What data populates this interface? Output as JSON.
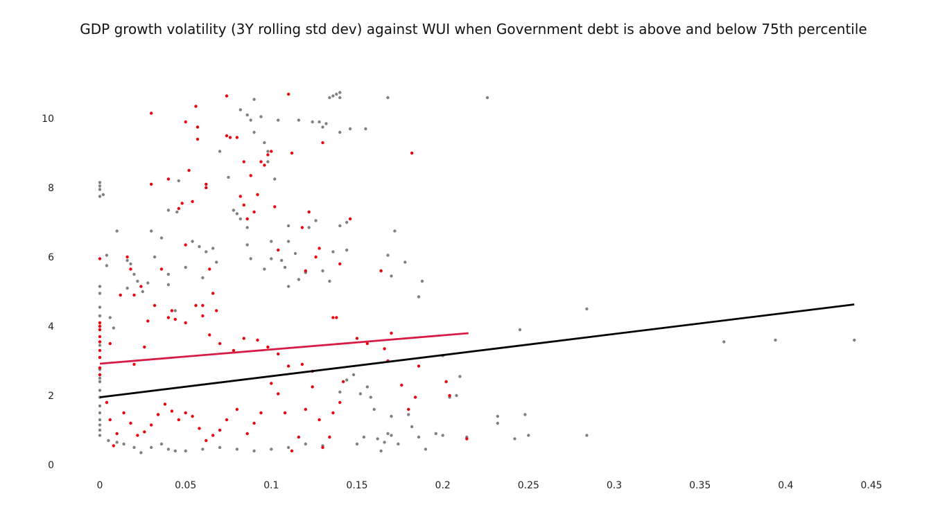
{
  "chart_data": {
    "type": "scatter",
    "title": "GDP growth volatility (3Y rolling std dev) against WUI when Government debt is above and below 75th percentile",
    "xlabel": "",
    "ylabel": "",
    "xlim": [
      0,
      0.45
    ],
    "ylim": [
      0,
      11
    ],
    "x_ticks": [
      0,
      0.05,
      0.1,
      0.15,
      0.2,
      0.25,
      0.3,
      0.35,
      0.4,
      0.45
    ],
    "x_tick_labels": [
      "0",
      "0.05",
      "0.1",
      "0.15",
      "0.2",
      "0.25",
      "0.3",
      "0.35",
      "0.4",
      "0.45"
    ],
    "y_ticks": [
      0,
      2,
      4,
      6,
      8,
      10
    ],
    "y_tick_labels": [
      "0",
      "2",
      "4",
      "6",
      "8",
      "10"
    ],
    "grid": false,
    "legend": "none",
    "series": [
      {
        "color": "#808080",
        "points": [
          [
            0,
            8.15
          ],
          [
            0,
            8.05
          ],
          [
            0,
            7.95
          ],
          [
            0,
            7.75
          ],
          [
            0.002,
            7.8
          ],
          [
            0.01,
            6.75
          ],
          [
            0.004,
            6.05
          ],
          [
            0.004,
            5.75
          ],
          [
            0,
            5.15
          ],
          [
            0,
            4.95
          ],
          [
            0,
            4.55
          ],
          [
            0,
            4.3
          ],
          [
            0,
            4.0
          ],
          [
            0.006,
            4.25
          ],
          [
            0.008,
            3.95
          ],
          [
            0,
            3.45
          ],
          [
            0,
            3.1
          ],
          [
            0,
            2.75
          ],
          [
            0,
            2.5
          ],
          [
            0,
            2.4
          ],
          [
            0,
            2.15
          ],
          [
            0,
            1.95
          ],
          [
            0,
            1.7
          ],
          [
            0,
            1.5
          ],
          [
            0,
            1.3
          ],
          [
            0,
            1.15
          ],
          [
            0,
            1.0
          ],
          [
            0,
            0.85
          ],
          [
            0.016,
            5.9
          ],
          [
            0.018,
            5.8
          ],
          [
            0.02,
            5.5
          ],
          [
            0.016,
            5.1
          ],
          [
            0.022,
            5.3
          ],
          [
            0.025,
            5.0
          ],
          [
            0.028,
            5.25
          ],
          [
            0.03,
            6.75
          ],
          [
            0.032,
            6.0
          ],
          [
            0.036,
            6.55
          ],
          [
            0.04,
            5.5
          ],
          [
            0.04,
            7.35
          ],
          [
            0.045,
            7.3
          ],
          [
            0.046,
            8.2
          ],
          [
            0.04,
            5.2
          ],
          [
            0.044,
            4.45
          ],
          [
            0.05,
            5.7
          ],
          [
            0.054,
            6.45
          ],
          [
            0.058,
            6.3
          ],
          [
            0.06,
            5.4
          ],
          [
            0.062,
            6.15
          ],
          [
            0.066,
            6.25
          ],
          [
            0.068,
            5.85
          ],
          [
            0.07,
            9.05
          ],
          [
            0.075,
            8.3
          ],
          [
            0.078,
            7.35
          ],
          [
            0.08,
            7.25
          ],
          [
            0.082,
            7.1
          ],
          [
            0.082,
            10.25
          ],
          [
            0.086,
            10.1
          ],
          [
            0.088,
            9.95
          ],
          [
            0.09,
            9.6
          ],
          [
            0.09,
            10.55
          ],
          [
            0.094,
            10.05
          ],
          [
            0.096,
            9.3
          ],
          [
            0.098,
            9.05
          ],
          [
            0.098,
            8.75
          ],
          [
            0.102,
            8.25
          ],
          [
            0.104,
            9.95
          ],
          [
            0.11,
            6.9
          ],
          [
            0.11,
            6.45
          ],
          [
            0.114,
            6.1
          ],
          [
            0.116,
            9.95
          ],
          [
            0.124,
            9.9
          ],
          [
            0.128,
            9.9
          ],
          [
            0.13,
            9.75
          ],
          [
            0.132,
            9.85
          ],
          [
            0.134,
            10.6
          ],
          [
            0.136,
            10.65
          ],
          [
            0.138,
            10.7
          ],
          [
            0.14,
            10.75
          ],
          [
            0.14,
            10.6
          ],
          [
            0.14,
            9.6
          ],
          [
            0.146,
            9.7
          ],
          [
            0.155,
            9.7
          ],
          [
            0.168,
            10.6
          ],
          [
            0.226,
            10.6
          ],
          [
            0.086,
            6.85
          ],
          [
            0.086,
            6.35
          ],
          [
            0.088,
            5.95
          ],
          [
            0.096,
            5.65
          ],
          [
            0.1,
            6.45
          ],
          [
            0.1,
            5.95
          ],
          [
            0.106,
            5.9
          ],
          [
            0.108,
            5.7
          ],
          [
            0.11,
            5.15
          ],
          [
            0.116,
            5.35
          ],
          [
            0.12,
            5.55
          ],
          [
            0.122,
            6.85
          ],
          [
            0.126,
            7.05
          ],
          [
            0.13,
            5.6
          ],
          [
            0.134,
            5.3
          ],
          [
            0.136,
            6.15
          ],
          [
            0.14,
            6.9
          ],
          [
            0.144,
            6.2
          ],
          [
            0.144,
            7.0
          ],
          [
            0.164,
            5.6
          ],
          [
            0.168,
            6.05
          ],
          [
            0.17,
            5.45
          ],
          [
            0.172,
            6.75
          ],
          [
            0.178,
            5.85
          ],
          [
            0.186,
            4.85
          ],
          [
            0.188,
            5.3
          ],
          [
            0.284,
            4.5
          ],
          [
            0.245,
            3.9
          ],
          [
            0.364,
            3.55
          ],
          [
            0.394,
            3.6
          ],
          [
            0.44,
            3.6
          ],
          [
            0.2,
            3.15
          ],
          [
            0.21,
            2.55
          ],
          [
            0.208,
            2.0
          ],
          [
            0.204,
            1.95
          ],
          [
            0.232,
            1.4
          ],
          [
            0.232,
            1.2
          ],
          [
            0.248,
            1.45
          ],
          [
            0.25,
            0.85
          ],
          [
            0.242,
            0.75
          ],
          [
            0.284,
            0.85
          ],
          [
            0.214,
            0.8
          ],
          [
            0.2,
            0.85
          ],
          [
            0.196,
            0.9
          ],
          [
            0.19,
            0.45
          ],
          [
            0.186,
            0.8
          ],
          [
            0.182,
            1.1
          ],
          [
            0.18,
            1.45
          ],
          [
            0.17,
            1.4
          ],
          [
            0.166,
            0.65
          ],
          [
            0.168,
            0.9
          ],
          [
            0.162,
            0.75
          ],
          [
            0.16,
            1.6
          ],
          [
            0.158,
            1.95
          ],
          [
            0.156,
            2.25
          ],
          [
            0.152,
            2.05
          ],
          [
            0.148,
            2.6
          ],
          [
            0.144,
            2.45
          ],
          [
            0.14,
            2.1
          ],
          [
            0.15,
            0.6
          ],
          [
            0.154,
            0.8
          ],
          [
            0.17,
            0.85
          ],
          [
            0.174,
            0.6
          ],
          [
            0.164,
            0.4
          ],
          [
            0.13,
            0.55
          ],
          [
            0.12,
            0.6
          ],
          [
            0.11,
            0.5
          ],
          [
            0.1,
            0.45
          ],
          [
            0.09,
            0.4
          ],
          [
            0.08,
            0.45
          ],
          [
            0.07,
            0.5
          ],
          [
            0.06,
            0.45
          ],
          [
            0.05,
            0.4
          ],
          [
            0.044,
            0.4
          ],
          [
            0.04,
            0.45
          ],
          [
            0.036,
            0.6
          ],
          [
            0.03,
            0.5
          ],
          [
            0.024,
            0.35
          ],
          [
            0.02,
            0.5
          ],
          [
            0.014,
            0.6
          ],
          [
            0.01,
            0.65
          ],
          [
            0.005,
            0.7
          ]
        ]
      },
      {
        "color": "#e8000b",
        "points": [
          [
            0,
            5.95
          ],
          [
            0,
            4.1
          ],
          [
            0,
            4.0
          ],
          [
            0,
            3.9
          ],
          [
            0,
            3.7
          ],
          [
            0,
            3.55
          ],
          [
            0,
            3.3
          ],
          [
            0,
            3.1
          ],
          [
            0,
            2.8
          ],
          [
            0,
            2.6
          ],
          [
            0.006,
            3.5
          ],
          [
            0.012,
            4.9
          ],
          [
            0.016,
            6.0
          ],
          [
            0.018,
            5.65
          ],
          [
            0.02,
            4.9
          ],
          [
            0.024,
            5.15
          ],
          [
            0.028,
            4.15
          ],
          [
            0.03,
            10.15
          ],
          [
            0.03,
            8.1
          ],
          [
            0.032,
            4.6
          ],
          [
            0.036,
            5.65
          ],
          [
            0.04,
            4.25
          ],
          [
            0.042,
            4.45
          ],
          [
            0.044,
            4.2
          ],
          [
            0.04,
            8.25
          ],
          [
            0.046,
            7.4
          ],
          [
            0.048,
            7.55
          ],
          [
            0.05,
            9.9
          ],
          [
            0.05,
            6.35
          ],
          [
            0.052,
            8.5
          ],
          [
            0.054,
            7.6
          ],
          [
            0.056,
            10.35
          ],
          [
            0.057,
            9.75
          ],
          [
            0.057,
            9.4
          ],
          [
            0.06,
            4.6
          ],
          [
            0.062,
            8.1
          ],
          [
            0.062,
            8.0
          ],
          [
            0.064,
            5.65
          ],
          [
            0.066,
            4.95
          ],
          [
            0.068,
            4.45
          ],
          [
            0.074,
            9.5
          ],
          [
            0.074,
            10.65
          ],
          [
            0.076,
            9.45
          ],
          [
            0.08,
            9.45
          ],
          [
            0.082,
            7.75
          ],
          [
            0.084,
            8.75
          ],
          [
            0.084,
            7.5
          ],
          [
            0.086,
            7.1
          ],
          [
            0.088,
            8.35
          ],
          [
            0.09,
            7.3
          ],
          [
            0.092,
            7.8
          ],
          [
            0.094,
            8.75
          ],
          [
            0.096,
            8.65
          ],
          [
            0.098,
            8.95
          ],
          [
            0.1,
            9.05
          ],
          [
            0.102,
            7.45
          ],
          [
            0.104,
            6.2
          ],
          [
            0.11,
            10.7
          ],
          [
            0.112,
            9.0
          ],
          [
            0.118,
            6.85
          ],
          [
            0.12,
            5.6
          ],
          [
            0.122,
            7.3
          ],
          [
            0.126,
            6.0
          ],
          [
            0.128,
            6.25
          ],
          [
            0.13,
            9.3
          ],
          [
            0.136,
            4.25
          ],
          [
            0.138,
            4.25
          ],
          [
            0.14,
            5.8
          ],
          [
            0.146,
            7.1
          ],
          [
            0.164,
            5.6
          ],
          [
            0.17,
            3.8
          ],
          [
            0.166,
            3.35
          ],
          [
            0.182,
            9.0
          ],
          [
            0.18,
            1.6
          ],
          [
            0.184,
            1.95
          ],
          [
            0.186,
            2.85
          ],
          [
            0.176,
            2.3
          ],
          [
            0.168,
            3.0
          ],
          [
            0.202,
            2.4
          ],
          [
            0.204,
            2.0
          ],
          [
            0.214,
            0.75
          ],
          [
            0.142,
            2.4
          ],
          [
            0.14,
            1.8
          ],
          [
            0.136,
            1.5
          ],
          [
            0.134,
            0.8
          ],
          [
            0.13,
            0.5
          ],
          [
            0.128,
            1.3
          ],
          [
            0.124,
            2.25
          ],
          [
            0.12,
            1.6
          ],
          [
            0.116,
            0.8
          ],
          [
            0.112,
            0.4
          ],
          [
            0.108,
            1.5
          ],
          [
            0.104,
            2.05
          ],
          [
            0.1,
            2.35
          ],
          [
            0.094,
            1.5
          ],
          [
            0.09,
            1.2
          ],
          [
            0.086,
            0.9
          ],
          [
            0.08,
            1.6
          ],
          [
            0.074,
            1.3
          ],
          [
            0.07,
            1.0
          ],
          [
            0.066,
            0.85
          ],
          [
            0.062,
            0.7
          ],
          [
            0.058,
            1.05
          ],
          [
            0.054,
            1.4
          ],
          [
            0.05,
            1.5
          ],
          [
            0.046,
            1.3
          ],
          [
            0.042,
            1.55
          ],
          [
            0.038,
            1.75
          ],
          [
            0.034,
            1.45
          ],
          [
            0.03,
            1.15
          ],
          [
            0.026,
            0.95
          ],
          [
            0.022,
            0.85
          ],
          [
            0.018,
            1.2
          ],
          [
            0.014,
            1.5
          ],
          [
            0.01,
            0.9
          ],
          [
            0.008,
            0.55
          ],
          [
            0.006,
            1.3
          ],
          [
            0.004,
            1.8
          ],
          [
            0.02,
            2.9
          ],
          [
            0.026,
            3.4
          ],
          [
            0.05,
            4.1
          ],
          [
            0.056,
            4.6
          ],
          [
            0.06,
            4.3
          ],
          [
            0.064,
            3.75
          ],
          [
            0.07,
            3.5
          ],
          [
            0.078,
            3.3
          ],
          [
            0.084,
            3.65
          ],
          [
            0.092,
            3.6
          ],
          [
            0.098,
            3.4
          ],
          [
            0.104,
            3.2
          ],
          [
            0.11,
            2.85
          ],
          [
            0.118,
            2.9
          ],
          [
            0.124,
            2.7
          ],
          [
            0.15,
            3.65
          ],
          [
            0.156,
            3.5
          ]
        ]
      }
    ],
    "trend_lines": [
      {
        "color": "#000000",
        "x": [
          0,
          0.44
        ],
        "y": [
          1.95,
          4.63
        ]
      },
      {
        "color": "#d81b45",
        "x": [
          0,
          0.215
        ],
        "y": [
          2.92,
          3.8
        ]
      }
    ]
  }
}
